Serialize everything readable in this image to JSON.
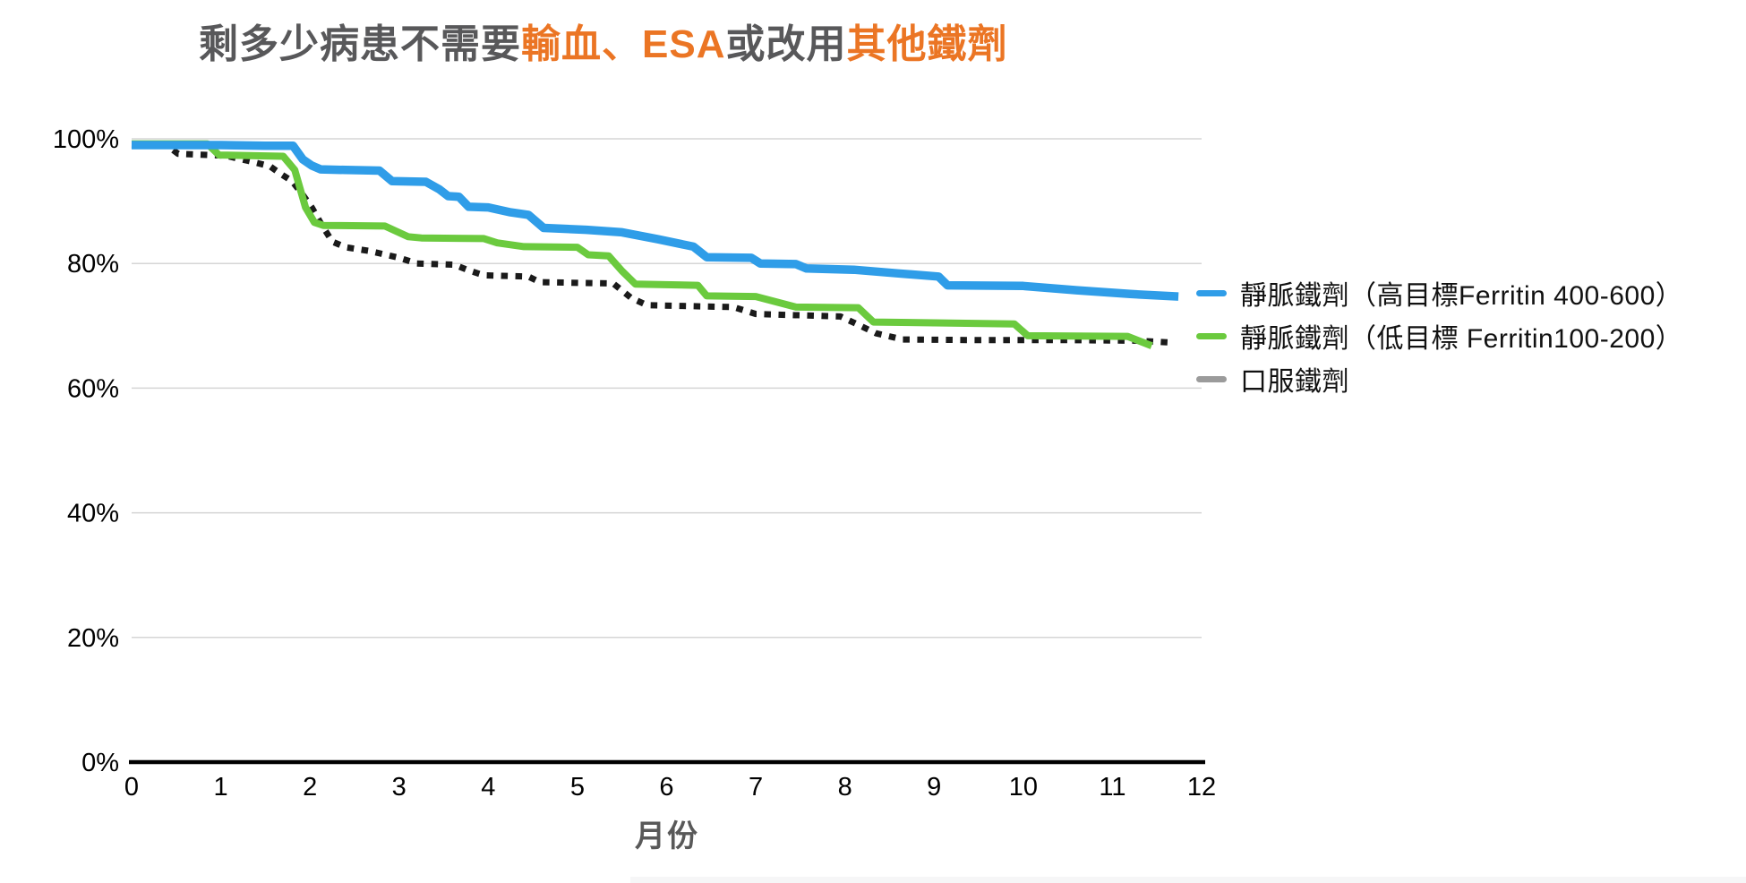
{
  "title": {
    "part1": "剩多少病患不需要",
    "part2": "輸血、ESA",
    "part3": "或改用",
    "part4": "其他鐵劑"
  },
  "colors": {
    "title_gray": "#58585A",
    "title_orange": "#EB7524",
    "grid_line": "#D5D5D5",
    "axis_line": "#000000",
    "iv_high_blue": "#2F9DE8",
    "iv_low_green": "#6BCA3E",
    "oral_line_black": "#1A1A1A",
    "oral_legend_gray": "#9B9B9B",
    "x_axis_title_gray": "#595959"
  },
  "legend": [
    {
      "label": "靜脈鐵劑（高目標Ferritin 400-600）",
      "color": "#2F9DE8"
    },
    {
      "label": "靜脈鐵劑（低目標 Ferritin100-200）",
      "color": "#6BCA3E"
    },
    {
      "label": "口服鐵劑",
      "color": "#9B9B9B"
    }
  ],
  "x_axis_title": "月份",
  "chart_data": {
    "type": "line",
    "title": "剩多少病患不需要輸血、ESA或改用其他鐵劑",
    "xlabel": "月份",
    "ylabel": "",
    "xlim": [
      0,
      12
    ],
    "ylim": [
      0,
      100
    ],
    "xticks": [
      0,
      1,
      2,
      3,
      4,
      5,
      6,
      7,
      8,
      9,
      10,
      11,
      12
    ],
    "yticks": [
      {
        "value": 0,
        "label": "0%"
      },
      {
        "value": 20,
        "label": "20%"
      },
      {
        "value": 40,
        "label": "40%"
      },
      {
        "value": 60,
        "label": "60%"
      },
      {
        "value": 80,
        "label": "80%"
      },
      {
        "value": 100,
        "label": "100%"
      }
    ],
    "grid": "horizontal",
    "legend_position": "right",
    "series": [
      {
        "id": "iv-high",
        "name": "靜脈鐵劑（高目標Ferritin 400-600）",
        "color": "#2F9DE8",
        "dash": "solid",
        "width": 9.5,
        "points": [
          [
            0,
            99.0
          ],
          [
            1.0,
            99.0
          ],
          [
            1.5,
            98.9
          ],
          [
            1.81,
            98.9
          ],
          [
            1.92,
            96.7
          ],
          [
            2.02,
            95.7
          ],
          [
            2.12,
            95.1
          ],
          [
            2.4,
            95.0
          ],
          [
            2.78,
            94.9
          ],
          [
            2.92,
            93.2
          ],
          [
            3.3,
            93.1
          ],
          [
            3.45,
            91.9
          ],
          [
            3.55,
            90.8
          ],
          [
            3.67,
            90.7
          ],
          [
            3.78,
            89.1
          ],
          [
            4.0,
            89.0
          ],
          [
            4.25,
            88.2
          ],
          [
            4.45,
            87.8
          ],
          [
            4.62,
            85.7
          ],
          [
            5.1,
            85.4
          ],
          [
            5.5,
            85.0
          ],
          [
            5.9,
            83.9
          ],
          [
            6.3,
            82.7
          ],
          [
            6.45,
            81.0
          ],
          [
            6.95,
            80.9
          ],
          [
            7.05,
            80.0
          ],
          [
            7.45,
            79.9
          ],
          [
            7.57,
            79.2
          ],
          [
            8.1,
            79.0
          ],
          [
            8.6,
            78.4
          ],
          [
            9.05,
            77.9
          ],
          [
            9.15,
            76.5
          ],
          [
            10.0,
            76.4
          ],
          [
            10.6,
            75.7
          ],
          [
            11.2,
            75.1
          ],
          [
            11.74,
            74.7
          ]
        ]
      },
      {
        "id": "iv-low",
        "name": "靜脈鐵劑（低目標 Ferritin100-200）",
        "color": "#6BCA3E",
        "dash": "solid",
        "width": 8,
        "points": [
          [
            0,
            99.2
          ],
          [
            0.85,
            99.2
          ],
          [
            0.98,
            97.4
          ],
          [
            1.7,
            97.2
          ],
          [
            1.83,
            95.0
          ],
          [
            1.95,
            89.0
          ],
          [
            2.05,
            86.6
          ],
          [
            2.15,
            86.1
          ],
          [
            2.84,
            86.0
          ],
          [
            3.1,
            84.3
          ],
          [
            3.25,
            84.1
          ],
          [
            3.95,
            84.0
          ],
          [
            4.1,
            83.3
          ],
          [
            4.4,
            82.7
          ],
          [
            5.0,
            82.6
          ],
          [
            5.12,
            81.4
          ],
          [
            5.35,
            81.2
          ],
          [
            5.5,
            78.8
          ],
          [
            5.65,
            76.7
          ],
          [
            6.35,
            76.5
          ],
          [
            6.45,
            74.8
          ],
          [
            7.0,
            74.7
          ],
          [
            7.45,
            73.0
          ],
          [
            8.15,
            72.9
          ],
          [
            8.32,
            70.6
          ],
          [
            9.9,
            70.3
          ],
          [
            10.05,
            68.4
          ],
          [
            11.17,
            68.3
          ],
          [
            11.44,
            66.8
          ]
        ]
      },
      {
        "id": "oral",
        "name": "口服鐵劑",
        "color": "#1A1A1A",
        "legend_color": "#9B9B9B",
        "dash": "dotted",
        "width": 7,
        "points": [
          [
            0,
            99.0
          ],
          [
            0.4,
            98.9
          ],
          [
            0.52,
            97.6
          ],
          [
            1.05,
            97.3
          ],
          [
            1.33,
            96.4
          ],
          [
            1.55,
            95.6
          ],
          [
            1.68,
            94.3
          ],
          [
            1.8,
            93.2
          ],
          [
            1.92,
            91.0
          ],
          [
            2.02,
            89.0
          ],
          [
            2.12,
            86.5
          ],
          [
            2.25,
            83.5
          ],
          [
            2.4,
            82.6
          ],
          [
            2.67,
            82.0
          ],
          [
            3.0,
            80.9
          ],
          [
            3.2,
            80.0
          ],
          [
            3.62,
            79.8
          ],
          [
            3.78,
            78.9
          ],
          [
            3.95,
            78.1
          ],
          [
            4.45,
            77.9
          ],
          [
            4.58,
            77.0
          ],
          [
            5.4,
            76.8
          ],
          [
            5.6,
            74.5
          ],
          [
            5.78,
            73.3
          ],
          [
            6.75,
            73.0
          ],
          [
            7.0,
            71.9
          ],
          [
            7.95,
            71.5
          ],
          [
            8.1,
            70.5
          ],
          [
            8.35,
            68.8
          ],
          [
            8.65,
            67.8
          ],
          [
            9.5,
            67.7
          ],
          [
            10.5,
            67.7
          ],
          [
            11.3,
            67.6
          ],
          [
            11.68,
            67.3
          ]
        ]
      }
    ]
  }
}
